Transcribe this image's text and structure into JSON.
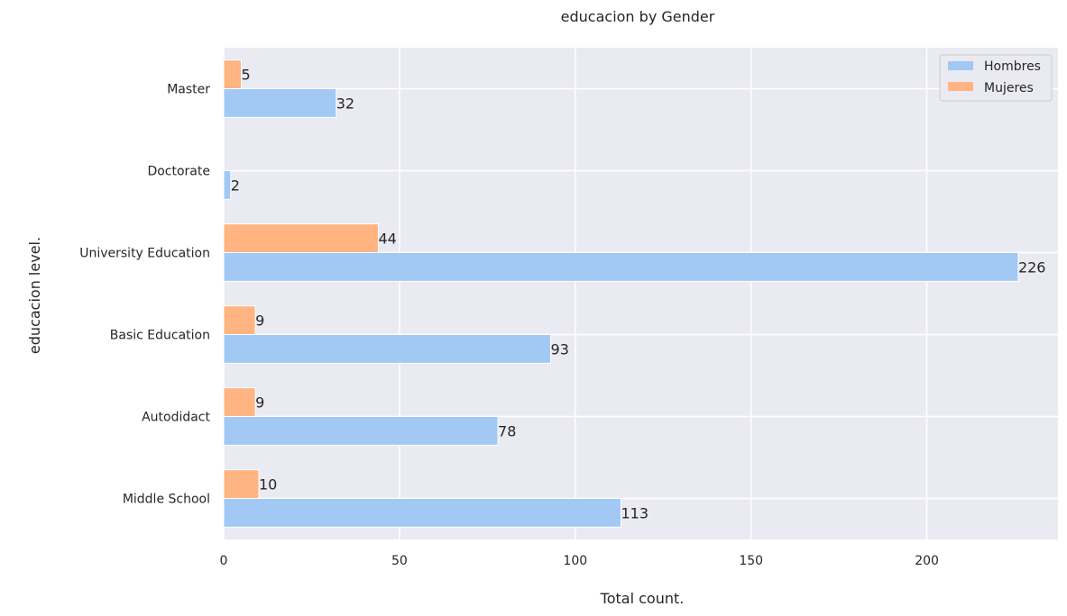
{
  "chart_data": {
    "type": "bar",
    "orientation": "horizontal",
    "title": "educacion by Gender",
    "xlabel": "Total count.",
    "ylabel": "educacion level.",
    "categories": [
      "Master",
      "Doctorate",
      "University Education",
      "Basic Education",
      "Autodidact",
      "Middle School"
    ],
    "series": [
      {
        "name": "Mujeres",
        "values": [
          5,
          0,
          44,
          9,
          9,
          10
        ],
        "color": "#ffb482"
      },
      {
        "name": "Hombres",
        "values": [
          32,
          2,
          226,
          93,
          78,
          113
        ],
        "color": "#a1c9f4"
      }
    ],
    "data_labels": {
      "Mujeres": [
        "5",
        "",
        "44",
        "9",
        "9",
        "10"
      ],
      "Hombres": [
        "32",
        "2",
        "226",
        "93",
        "78",
        "113"
      ]
    },
    "xlim": [
      0,
      237.3
    ],
    "xticks": [
      0,
      50,
      100,
      150,
      200
    ],
    "xtick_labels": [
      "0",
      "50",
      "100",
      "150",
      "200"
    ],
    "legend": {
      "placement": "top-right",
      "entries": [
        {
          "label": "Hombres",
          "color": "#a1c9f4"
        },
        {
          "label": "Mujeres",
          "color": "#ffb482"
        }
      ]
    },
    "grid": true,
    "plot_background": "#eaeaf2",
    "grid_color": "#ffffff"
  }
}
